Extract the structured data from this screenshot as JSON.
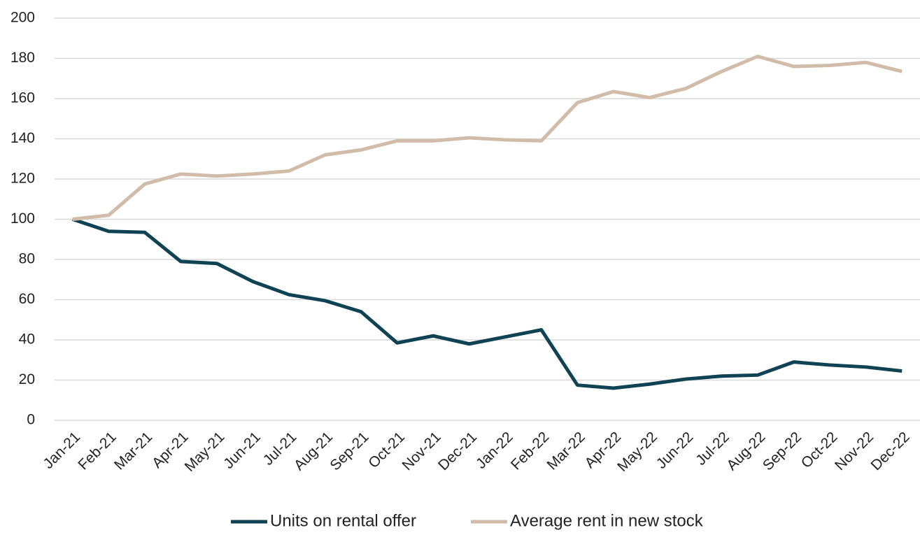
{
  "chart_data": {
    "type": "line",
    "categories": [
      "Jan-21",
      "Feb-21",
      "Mar-21",
      "Apr-21",
      "May-21",
      "Jun-21",
      "Jul-21",
      "Aug-21",
      "Sep-21",
      "Oct-21",
      "Nov-21",
      "Dec-21",
      "Jan-22",
      "Feb-22",
      "Mar-22",
      "Apr-22",
      "May-22",
      "Jun-22",
      "Jul-22",
      "Aug-22",
      "Sep-22",
      "Oct-22",
      "Nov-22",
      "Dec-22"
    ],
    "series": [
      {
        "name": "Units on rental offer",
        "color": "#0f4354",
        "values": [
          100,
          94,
          93.5,
          79,
          78,
          69,
          62.5,
          59.5,
          54,
          38.5,
          42,
          38,
          41.5,
          45,
          17.5,
          16,
          18,
          20.5,
          22,
          22.5,
          29,
          27.5,
          26.5,
          24.5
        ]
      },
      {
        "name": "Average rent in new stock",
        "color": "#d0bca8",
        "values": [
          100,
          102,
          117.5,
          122.5,
          121.5,
          122.5,
          124,
          132,
          134.5,
          139,
          139,
          140.5,
          139.5,
          139,
          158,
          163.5,
          160.5,
          165,
          173.5,
          181,
          176,
          176.5,
          178,
          173.5
        ]
      }
    ],
    "ylim": [
      0,
      200
    ],
    "yticks": [
      0,
      20,
      40,
      60,
      80,
      100,
      120,
      140,
      160,
      180,
      200
    ],
    "grid": true,
    "legend": "bottom"
  }
}
